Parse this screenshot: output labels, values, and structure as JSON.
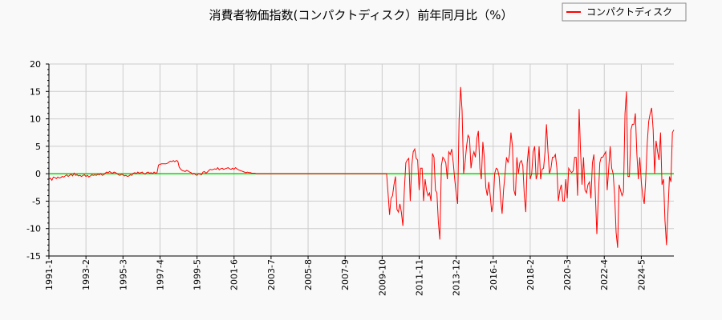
{
  "chart_data": {
    "type": "line",
    "title": "消費者物価指数(コンパクトディスク）前年同月比（%）",
    "xlabel": "",
    "ylabel": "",
    "x_start": "1991-1",
    "x_frequency": "monthly",
    "ylim": [
      -15,
      20
    ],
    "yticks": [
      20,
      15,
      10,
      5,
      0,
      -5,
      -10,
      -15
    ],
    "xtick_every_months": 25,
    "xticks": [
      "1991-1",
      "1993-2",
      "1995-3",
      "1997-4",
      "1999-5",
      "2001-6",
      "2003-7",
      "2005-8",
      "2007-9",
      "2009-10",
      "2011-11",
      "2013-12",
      "2016-1",
      "2018-2",
      "2020-3",
      "2022-4",
      "2024-5"
    ],
    "grid": true,
    "legend_position": "top-right",
    "reference_line": {
      "value": 0,
      "color": "#00dd00"
    },
    "series": [
      {
        "name": "コンパクトディスク",
        "color": "#ff0000",
        "values": [
          -1,
          -0.8,
          -1.2,
          -0.6,
          -0.7,
          -0.9,
          -0.6,
          -0.8,
          -0.7,
          -0.5,
          -0.6,
          -0.4,
          -0.2,
          -0.5,
          -0.3,
          -0.1,
          -0.4,
          0.1,
          -0.3,
          -0.2,
          -0.4,
          -0.3,
          -0.5,
          -0.3,
          -0.2,
          -0.5,
          -0.3,
          -0.6,
          -0.4,
          -0.2,
          -0.3,
          -0.2,
          -0.3,
          -0.1,
          -0.2,
          0,
          -0.3,
          -0.2,
          0.1,
          0.3,
          0.2,
          0.4,
          0.2,
          0.1,
          0.3,
          0.2,
          0,
          -0.2,
          -0.3,
          -0.1,
          -0.2,
          -0.4,
          -0.3,
          -0.5,
          -0.4,
          -0.2,
          -0.3,
          0.1,
          0.2,
          0,
          0.3,
          0.1,
          0.2,
          0.3,
          0,
          -0.1,
          0.2,
          0.3,
          0.1,
          0.2,
          0,
          0.3,
          0.1,
          0.2,
          1.6,
          1.7,
          1.8,
          1.8,
          1.8,
          1.8,
          1.9,
          2.1,
          2.3,
          2.2,
          2.4,
          2.2,
          2.4,
          2.3,
          1.2,
          0.8,
          0.6,
          0.5,
          0.4,
          0.6,
          0.5,
          0.3,
          0.2,
          -0.1,
          0.1,
          -0.2,
          -0.3,
          0,
          -0.1,
          -0.2,
          0.3,
          0.4,
          0.1,
          0.3,
          0.6,
          0.8,
          0.7,
          0.8,
          0.9,
          0.8,
          1.1,
          0.7,
          0.9,
          1,
          0.8,
          0.9,
          1,
          1.1,
          0.9,
          0.8,
          1,
          0.8,
          1.1,
          0.9,
          0.7,
          0.6,
          0.5,
          0.4,
          0.3,
          0.2,
          0.3,
          0.2,
          0.2,
          0.1,
          0.1,
          0.1,
          0,
          0,
          0,
          0,
          0,
          0,
          0,
          0,
          0,
          0,
          0,
          0,
          0,
          0,
          0,
          0,
          0,
          0,
          0,
          0,
          0,
          0,
          0,
          0,
          0,
          0,
          0,
          0,
          0,
          0,
          0,
          0,
          0,
          0,
          0,
          0,
          0,
          0,
          0,
          0,
          0,
          0,
          0,
          0,
          0,
          0,
          0,
          0,
          0,
          0,
          0,
          0,
          0,
          0,
          0,
          0,
          0,
          0,
          0,
          0,
          0,
          0,
          0,
          0,
          0,
          0,
          0,
          0,
          0,
          0,
          0,
          0,
          0,
          0,
          0,
          0,
          0,
          0,
          0,
          0,
          0,
          0,
          0,
          0,
          0,
          0,
          0,
          0,
          0,
          -3.5,
          -7.5,
          -4.5,
          -4,
          -2,
          -0.5,
          -6.5,
          -7,
          -5.5,
          -7,
          -9.5,
          -3,
          2,
          2.5,
          2.8,
          -5,
          1.5,
          4,
          4.5,
          2.8,
          2.5,
          -3,
          1,
          1,
          -5,
          -1,
          -3,
          -4,
          -3.5,
          -5,
          3.7,
          3,
          -3,
          -3.5,
          -9,
          -12,
          1.5,
          3,
          2.6,
          2,
          -1,
          4,
          3.5,
          4.5,
          2,
          -1,
          -3.5,
          -5.5,
          10,
          15.8,
          11.5,
          0,
          2,
          5,
          7,
          6.5,
          1,
          3,
          4,
          3,
          6.5,
          7.8,
          1,
          -1,
          5.8,
          3,
          -2.5,
          -4,
          -1.5,
          -4,
          -7,
          -5.5,
          0,
          1,
          0.8,
          -0.5,
          -4.5,
          -7.3,
          -3,
          0,
          3,
          2,
          3.5,
          7.5,
          5,
          -3,
          -4,
          3,
          0,
          2,
          2.4,
          1.5,
          -4,
          -7,
          2,
          5,
          -1,
          0,
          4,
          5,
          -1,
          0,
          5,
          -1,
          0.8,
          1,
          4,
          9,
          4,
          0,
          1,
          3,
          3,
          3.5,
          1,
          -5,
          -3,
          -2,
          -5,
          -5,
          -1,
          -4.5,
          1,
          0.5,
          0.2,
          0.5,
          3,
          3,
          -4,
          11.8,
          4,
          -2,
          3,
          -3,
          -3.5,
          -2,
          -1.5,
          -4.5,
          2,
          3.5,
          -4,
          -11,
          -4,
          2,
          3,
          3,
          3.5,
          4,
          -3,
          1,
          5,
          1,
          0,
          -4,
          -10.7,
          -13.5,
          -2,
          -3,
          -4,
          -3.3,
          11,
          15,
          -0.5,
          -0.5,
          8,
          9,
          9,
          11,
          3.5,
          -1,
          3,
          -1.5,
          -4,
          -5.5,
          -1,
          5.5,
          9.5,
          11,
          12,
          8,
          0,
          6,
          4,
          2.5,
          7.5,
          -2,
          -1,
          -8.5,
          -13,
          -7,
          -0.5,
          -1.5,
          7.5,
          8
        ]
      }
    ]
  }
}
